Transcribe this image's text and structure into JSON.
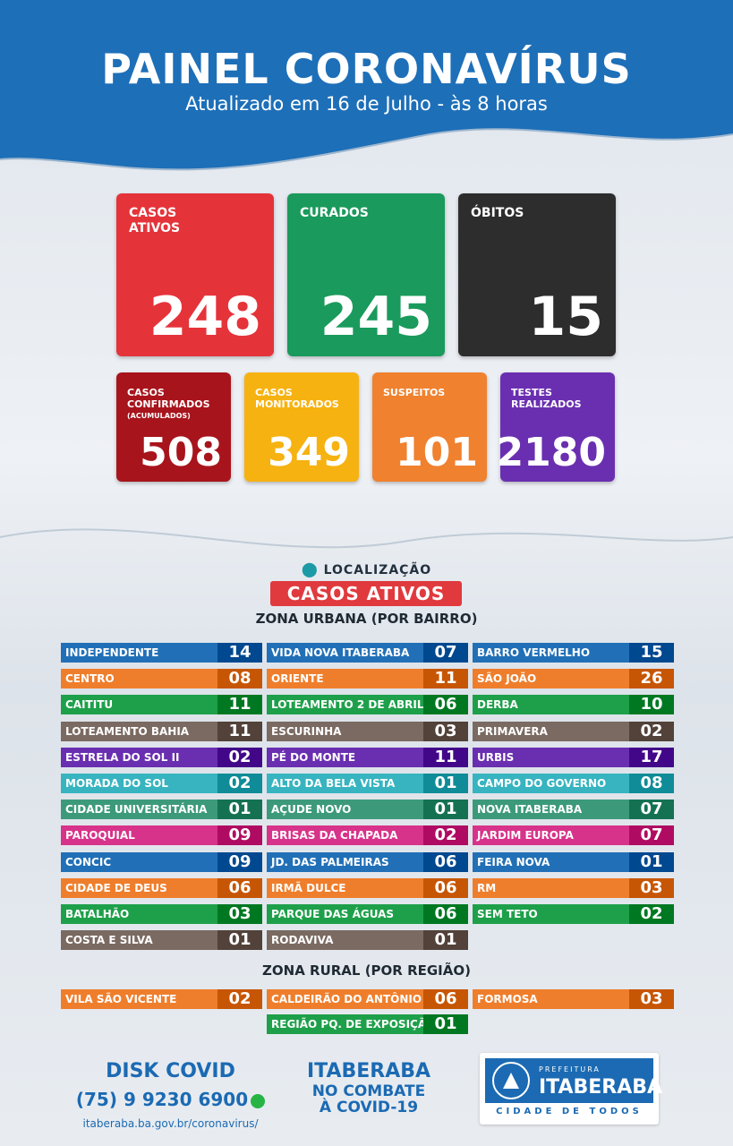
{
  "header": {
    "title": "PAINEL CORONAVÍRUS",
    "subtitle": "Atualizado em 16 de Julho - às 8 horas"
  },
  "main_cards": [
    {
      "label": "CASOS\nATIVOS",
      "value": "248",
      "color": "#e5333a"
    },
    {
      "label": "CURADOS",
      "value": "245",
      "color": "#1a9a5c"
    },
    {
      "label": "ÓBITOS",
      "value": "15",
      "color": "#2d2d2d"
    }
  ],
  "small_cards": [
    {
      "label": "CASOS\nCONFIRMADOS",
      "sub": "(ACUMULADOS)",
      "value": "508",
      "color": "#a8141c"
    },
    {
      "label": "CASOS\nMONITORADOS",
      "sub": "",
      "value": "349",
      "color": "#f6b211"
    },
    {
      "label": "SUSPEITOS",
      "sub": "",
      "value": "101",
      "color": "#f0812f"
    },
    {
      "label": "TESTES\nREALIZADOS",
      "sub": "",
      "value": "2180",
      "color": "#6a2fb0"
    }
  ],
  "location": {
    "label": "LOCALIZAÇÃO",
    "tag": "CASOS ATIVOS",
    "urban_title": "ZONA URBANA (POR BAIRRO)",
    "rural_title": "ZONA RURAL (POR REGIÃO)"
  },
  "colors": {
    "blue": "#2170b7",
    "orange": "#ef7e2c",
    "green": "#1ea04a",
    "brown": "#7a6a62",
    "purple": "#6a2fb0",
    "teal": "#37b4c0",
    "teal_green": "#3c9a7a",
    "magenta": "#d8338a"
  },
  "urban": [
    [
      {
        "name": "INDEPENDENTE",
        "value": "14",
        "color": "blue"
      },
      {
        "name": "CENTRO",
        "value": "08",
        "color": "orange"
      },
      {
        "name": "CAITITU",
        "value": "11",
        "color": "green"
      },
      {
        "name": "LOTEAMENTO BAHIA",
        "value": "11",
        "color": "brown"
      },
      {
        "name": "ESTRELA DO SOL II",
        "value": "02",
        "color": "purple"
      },
      {
        "name": "MORADA DO SOL",
        "value": "02",
        "color": "teal"
      },
      {
        "name": "CIDADE UNIVERSITÁRIA",
        "value": "01",
        "color": "teal_green"
      },
      {
        "name": "PAROQUIAL",
        "value": "09",
        "color": "magenta"
      },
      {
        "name": "CONCIC",
        "value": "09",
        "color": "blue"
      },
      {
        "name": "CIDADE DE DEUS",
        "value": "06",
        "color": "orange"
      },
      {
        "name": "BATALHÃO",
        "value": "03",
        "color": "green"
      },
      {
        "name": "COSTA E SILVA",
        "value": "01",
        "color": "brown"
      }
    ],
    [
      {
        "name": "VIDA NOVA ITABERABA",
        "value": "07",
        "color": "blue"
      },
      {
        "name": "ORIENTE",
        "value": "11",
        "color": "orange"
      },
      {
        "name": "LOTEAMENTO 2 DE ABRIL",
        "value": "06",
        "color": "green"
      },
      {
        "name": "ESCURINHA",
        "value": "03",
        "color": "brown"
      },
      {
        "name": "PÉ DO MONTE",
        "value": "11",
        "color": "purple"
      },
      {
        "name": "ALTO DA BELA VISTA",
        "value": "01",
        "color": "teal"
      },
      {
        "name": "AÇUDE NOVO",
        "value": "01",
        "color": "teal_green"
      },
      {
        "name": "BRISAS DA CHAPADA",
        "value": "02",
        "color": "magenta"
      },
      {
        "name": "JD. DAS PALMEIRAS",
        "value": "06",
        "color": "blue"
      },
      {
        "name": "IRMÃ DULCE",
        "value": "06",
        "color": "orange"
      },
      {
        "name": "PARQUE DAS ÁGUAS",
        "value": "06",
        "color": "green"
      },
      {
        "name": "RODAVIVA",
        "value": "01",
        "color": "brown"
      }
    ],
    [
      {
        "name": "BARRO VERMELHO",
        "value": "15",
        "color": "blue"
      },
      {
        "name": "SÃO JOÃO",
        "value": "26",
        "color": "orange"
      },
      {
        "name": "DERBA",
        "value": "10",
        "color": "green"
      },
      {
        "name": "PRIMAVERA",
        "value": "02",
        "color": "brown"
      },
      {
        "name": "URBIS",
        "value": "17",
        "color": "purple"
      },
      {
        "name": "CAMPO DO GOVERNO",
        "value": "08",
        "color": "teal"
      },
      {
        "name": "NOVA ITABERABA",
        "value": "07",
        "color": "teal_green"
      },
      {
        "name": "JARDIM EUROPA",
        "value": "07",
        "color": "magenta"
      },
      {
        "name": "FEIRA NOVA",
        "value": "01",
        "color": "blue"
      },
      {
        "name": "RM",
        "value": "03",
        "color": "orange"
      },
      {
        "name": "SEM TETO",
        "value": "02",
        "color": "green"
      }
    ]
  ],
  "rural": [
    {
      "name": "VILA SÃO VICENTE",
      "value": "02",
      "color": "orange"
    },
    {
      "name": "CALDEIRÃO DO ANTÔNIO",
      "value": "06",
      "color": "orange"
    },
    {
      "name": "FORMOSA",
      "value": "03",
      "color": "orange"
    },
    {
      "name": "REGIÃO PQ. DE EXPOSIÇÃO",
      "value": "01",
      "color": "green"
    }
  ],
  "footer": {
    "disk": "DISK COVID",
    "phone": "(75) 9 9230 6900",
    "url": "itaberaba.ba.gov.br/coronavirus/",
    "city": "ITABERABA",
    "combate": "NO COMBATE\nÀ COVID-19",
    "pref_small": "PREFEITURA",
    "pref_big": "ITABERABA",
    "motto": "CIDADE DE TODOS",
    "whatsapp_icon": "whatsapp-icon"
  }
}
